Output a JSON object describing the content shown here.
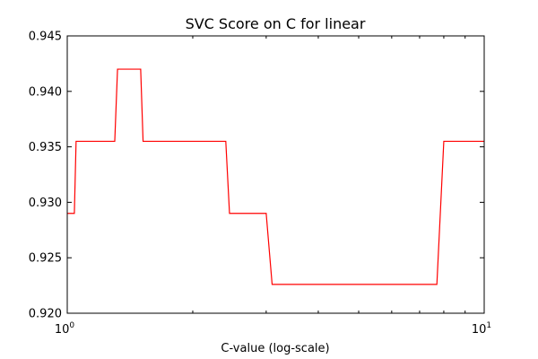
{
  "colors": {
    "background": "#ffffff",
    "axes": "#000000",
    "series": "#ff0000"
  },
  "chart_data": {
    "type": "line",
    "title": "SVC Score on C for linear",
    "xlabel": "C-value (log-scale)",
    "ylabel": "",
    "xscale": "log",
    "xlim": [
      1,
      10
    ],
    "ylim": [
      0.92,
      0.945
    ],
    "grid": false,
    "legend": "none",
    "yticks": [
      "0.920",
      "0.925",
      "0.930",
      "0.935",
      "0.940",
      "0.945"
    ],
    "xticks": [
      {
        "base": "10",
        "exp": "0"
      },
      {
        "base": "10",
        "exp": "1"
      }
    ],
    "series": [
      {
        "color": "#ff0000",
        "x": [
          1.0,
          1.04,
          1.05,
          1.3,
          1.32,
          1.5,
          1.52,
          2.4,
          2.45,
          3.0,
          3.1,
          7.7,
          8.0,
          10.0
        ],
        "y": [
          0.929,
          0.929,
          0.9355,
          0.9355,
          0.942,
          0.942,
          0.9355,
          0.9355,
          0.929,
          0.929,
          0.9226,
          0.9226,
          0.9355,
          0.9355
        ]
      }
    ]
  }
}
